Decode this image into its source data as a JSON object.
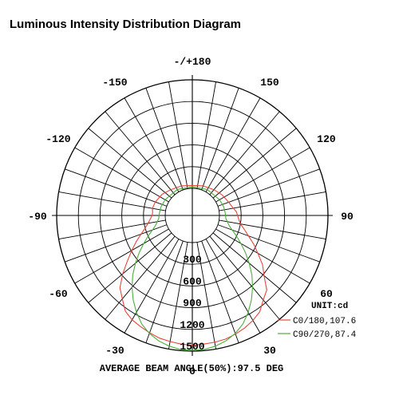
{
  "title": "Luminous Intensity Distribution Diagram",
  "chart_data": {
    "type": "polar",
    "angle_labels": [
      {
        "angle": 180,
        "text": "-/+180"
      },
      {
        "angle": -150,
        "text": "-150"
      },
      {
        "angle": 150,
        "text": "150"
      },
      {
        "angle": -120,
        "text": "-120"
      },
      {
        "angle": 120,
        "text": "120"
      },
      {
        "angle": -90,
        "text": "-90"
      },
      {
        "angle": 90,
        "text": "90"
      },
      {
        "angle": -60,
        "text": "-60"
      },
      {
        "angle": 60,
        "text": "60"
      },
      {
        "angle": -30,
        "text": "-30"
      },
      {
        "angle": 30,
        "text": "30"
      },
      {
        "angle": 0,
        "text": "0"
      }
    ],
    "radial_labels": [
      "300",
      "600",
      "900",
      "1200",
      "1500"
    ],
    "radial_max": 1500,
    "unit_label": "UNIT:cd",
    "beam_angle_text": "AVERAGE BEAM ANGLE(50%):97.5 DEG",
    "series": [
      {
        "name": "C0/180,107.6",
        "color": "#e8453c",
        "points": [
          [
            -180,
            40
          ],
          [
            -160,
            60
          ],
          [
            -140,
            90
          ],
          [
            -125,
            135
          ],
          [
            -110,
            170
          ],
          [
            -100,
            185
          ],
          [
            -95,
            175
          ],
          [
            -90,
            180
          ],
          [
            -85,
            210
          ],
          [
            -80,
            245
          ],
          [
            -75,
            300
          ],
          [
            -70,
            380
          ],
          [
            -65,
            480
          ],
          [
            -60,
            590
          ],
          [
            -55,
            720
          ],
          [
            -50,
            880
          ],
          [
            -45,
            1040
          ],
          [
            -40,
            1130
          ],
          [
            -35,
            1240
          ],
          [
            -30,
            1290
          ],
          [
            -25,
            1320
          ],
          [
            -20,
            1350
          ],
          [
            -15,
            1380
          ],
          [
            -10,
            1395
          ],
          [
            -5,
            1410
          ],
          [
            0,
            1420
          ],
          [
            5,
            1410
          ],
          [
            10,
            1405
          ],
          [
            15,
            1395
          ],
          [
            20,
            1370
          ],
          [
            25,
            1340
          ],
          [
            30,
            1300
          ],
          [
            35,
            1250
          ],
          [
            40,
            1150
          ],
          [
            45,
            1080
          ],
          [
            50,
            920
          ],
          [
            55,
            810
          ],
          [
            60,
            670
          ],
          [
            65,
            560
          ],
          [
            70,
            450
          ],
          [
            75,
            370
          ],
          [
            80,
            300
          ],
          [
            85,
            270
          ],
          [
            90,
            250
          ],
          [
            95,
            235
          ],
          [
            100,
            200
          ],
          [
            110,
            160
          ],
          [
            125,
            125
          ],
          [
            140,
            90
          ],
          [
            160,
            60
          ],
          [
            180,
            40
          ]
        ]
      },
      {
        "name": "C90/270,87.4",
        "color": "#4caf3c",
        "points": [
          [
            -180,
            20
          ],
          [
            -150,
            40
          ],
          [
            -120,
            60
          ],
          [
            -105,
            75
          ],
          [
            -95,
            80
          ],
          [
            -90,
            85
          ],
          [
            -85,
            90
          ],
          [
            -80,
            115
          ],
          [
            -75,
            150
          ],
          [
            -70,
            210
          ],
          [
            -65,
            300
          ],
          [
            -60,
            400
          ],
          [
            -55,
            520
          ],
          [
            -50,
            650
          ],
          [
            -45,
            790
          ],
          [
            -40,
            920
          ],
          [
            -35,
            1050
          ],
          [
            -30,
            1170
          ],
          [
            -25,
            1280
          ],
          [
            -20,
            1360
          ],
          [
            -15,
            1420
          ],
          [
            -10,
            1460
          ],
          [
            -5,
            1485
          ],
          [
            0,
            1490
          ],
          [
            5,
            1485
          ],
          [
            10,
            1460
          ],
          [
            15,
            1420
          ],
          [
            20,
            1360
          ],
          [
            25,
            1280
          ],
          [
            30,
            1170
          ],
          [
            35,
            1050
          ],
          [
            40,
            920
          ],
          [
            45,
            790
          ],
          [
            50,
            650
          ],
          [
            55,
            520
          ],
          [
            60,
            400
          ],
          [
            65,
            300
          ],
          [
            70,
            210
          ],
          [
            75,
            150
          ],
          [
            80,
            115
          ],
          [
            85,
            90
          ],
          [
            90,
            85
          ],
          [
            95,
            80
          ],
          [
            105,
            75
          ],
          [
            120,
            60
          ],
          [
            150,
            40
          ],
          [
            180,
            20
          ]
        ]
      }
    ]
  }
}
